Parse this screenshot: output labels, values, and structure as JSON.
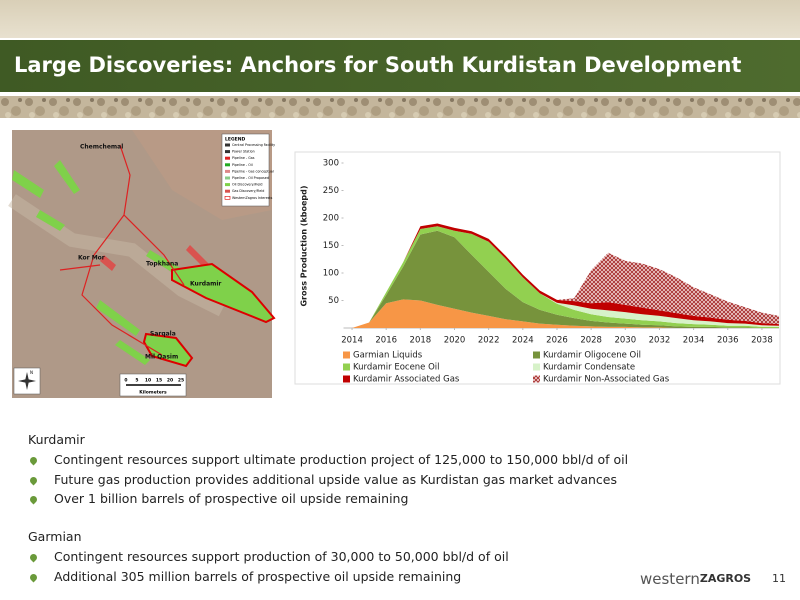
{
  "header": {
    "title": "Large Discoveries: Anchors for South Kurdistan Development"
  },
  "map": {
    "places": [
      "Chemchemal",
      "Kor Mor",
      "Topkhana",
      "Kurdamir",
      "Sarqala",
      "Mil Qasim"
    ],
    "legend_title": "LEGEND",
    "legend_items": [
      "Central Processing Facility",
      "Power Station",
      "Pipeline - Gas",
      "Pipeline - Oil",
      "Pipeline - Gas conceptual",
      "Pipeline - Oil Proposed",
      "Oil Discovery/Field",
      "Gas Discovery/Field",
      "WesternZagros Interests"
    ],
    "scale_labels": [
      "0",
      "5",
      "10",
      "15",
      "20",
      "25"
    ],
    "scale_unit": "Kilometers",
    "north": "N"
  },
  "chart_data": {
    "type": "stacked_area",
    "y_label": "Gross Production (kboepd)",
    "x": [
      2014,
      2015,
      2016,
      2017,
      2018,
      2019,
      2020,
      2021,
      2022,
      2023,
      2024,
      2025,
      2026,
      2027,
      2028,
      2029,
      2030,
      2031,
      2032,
      2033,
      2034,
      2035,
      2036,
      2037,
      2038,
      2039
    ],
    "xlim": [
      2013.5,
      2039
    ],
    "xticks": [
      2014,
      2016,
      2018,
      2020,
      2022,
      2024,
      2026,
      2028,
      2030,
      2032,
      2034,
      2036,
      2038
    ],
    "ylim": [
      0,
      300
    ],
    "yticks": [
      50,
      100,
      150,
      200,
      250,
      300
    ],
    "series": [
      {
        "name": "Garmian Liquids",
        "color": "#f79646",
        "values": [
          0,
          10,
          45,
          52,
          50,
          42,
          35,
          28,
          22,
          16,
          12,
          8,
          6,
          4,
          3,
          2,
          2,
          1,
          1,
          0,
          0,
          0,
          0,
          0,
          0,
          0
        ]
      },
      {
        "name": "Kurdamir Oligocene Oil",
        "color": "#77933c",
        "values": [
          0,
          0,
          15,
          60,
          120,
          135,
          130,
          105,
          80,
          55,
          35,
          25,
          18,
          14,
          10,
          8,
          6,
          5,
          4,
          3,
          2,
          2,
          1,
          1,
          0,
          0
        ]
      },
      {
        "name": "Kurdamir Eocene Oil",
        "color": "#92d050",
        "values": [
          0,
          0,
          5,
          8,
          10,
          8,
          12,
          38,
          55,
          55,
          45,
          30,
          20,
          15,
          12,
          10,
          9,
          8,
          7,
          6,
          5,
          4,
          3,
          3,
          2,
          2
        ]
      },
      {
        "name": "Kurdamir Condensate",
        "color": "#d7f2c9",
        "values": [
          0,
          0,
          0,
          0,
          0,
          0,
          0,
          0,
          0,
          0,
          0,
          0,
          2,
          8,
          10,
          12,
          12,
          11,
          10,
          9,
          7,
          6,
          5,
          4,
          3,
          2
        ]
      },
      {
        "name": "Kurdamir Associated Gas",
        "color": "#c00000",
        "values": [
          0,
          0,
          0,
          0,
          5,
          5,
          5,
          5,
          5,
          5,
          5,
          5,
          5,
          8,
          10,
          15,
          13,
          12,
          10,
          9,
          8,
          7,
          6,
          5,
          4,
          3
        ]
      },
      {
        "name": "Kurdamir Non-Associated Gas",
        "color": "#c0504d",
        "hatch": true,
        "values": [
          0,
          0,
          0,
          0,
          0,
          0,
          0,
          0,
          0,
          0,
          0,
          0,
          0,
          5,
          60,
          90,
          80,
          80,
          75,
          65,
          52,
          42,
          33,
          25,
          19,
          15
        ]
      }
    ]
  },
  "sections": [
    {
      "heading": "Kurdamir",
      "bullets": [
        "Contingent resources support ultimate production project of 125,000 to 150,000 bbl/d of oil",
        "Future gas production provides additional upside value as Kurdistan gas market advances",
        "Over 1 billion barrels of prospective oil upside remaining"
      ]
    },
    {
      "heading": "Garmian",
      "bullets": [
        "Contingent resources support production of 30,000 to 50,000 bbl/d of oil",
        "Additional 305 million barrels of prospective oil upside remaining"
      ]
    }
  ],
  "footer": {
    "logo_light": "western",
    "logo_bold": "ZAGROS",
    "page": "11"
  }
}
